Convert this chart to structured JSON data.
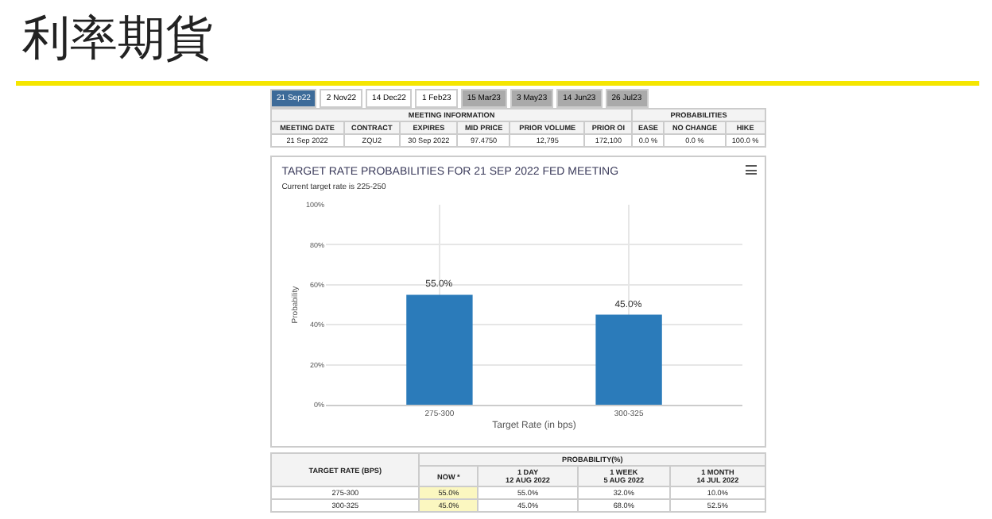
{
  "chart_data": [
    {
      "type": "other",
      "title": "利率期貨",
      "annotations": [
        "21 Sep22",
        "2 Nov22",
        "14 Dec22",
        "1 Feb23",
        "15 Mar23",
        "3 May23",
        "14 Jun23",
        "26 Jul23",
        "MEETING INFORMATION",
        "PROBABILITIES",
        "MEETING DATE",
        "CONTRACT",
        "EXPIRES",
        "MID PRICE",
        "PRIOR VOLUME",
        "PRIOR OI",
        "EASE",
        "NO CHANGE",
        "HIKE",
        "21 Sep 2022",
        "ZQU2",
        "30 Sep 2022",
        "97.4750",
        "12,795",
        "172,100",
        "0.0 %",
        "0.0 %",
        "100.0 %"
      ]
    },
    {
      "type": "bar",
      "title": "TARGET RATE PROBABILITIES FOR 21 SEP 2022 FED MEETING",
      "subtitle": "Current target rate is 225-250",
      "xlabel": "Target Rate (in bps)",
      "ylabel": "Probability",
      "categories": [
        "275-300",
        "300-325"
      ],
      "values": [
        55,
        45
      ],
      "color": "#2b7bba",
      "value_labels": [
        "55.0%",
        "45.0%"
      ],
      "ylim": [
        0,
        100
      ],
      "yticks": [
        {
          "value": 0,
          "label": "0%"
        },
        {
          "value": 20,
          "label": "20%"
        },
        {
          "value": 40,
          "label": "40%"
        },
        {
          "value": 60,
          "label": "60%"
        },
        {
          "value": 80,
          "label": "80%"
        },
        {
          "value": 100,
          "label": "100%"
        }
      ],
      "grid": true
    },
    {
      "type": "other",
      "annotations": [
        "TARGET RATE (BPS)",
        "PROBABILITY(%)",
        "NOW *",
        "1 DAY\n12 AUG 2022",
        "1 WEEK\n5 AUG 2022",
        "1 MONTH\n14 JUL 2022",
        "275-300",
        "55.0%",
        "55.0%",
        "32.0%",
        "10.0%",
        "300-325",
        "45.0%",
        "45.0%",
        "68.0%",
        "52.5%"
      ]
    }
  ]
}
